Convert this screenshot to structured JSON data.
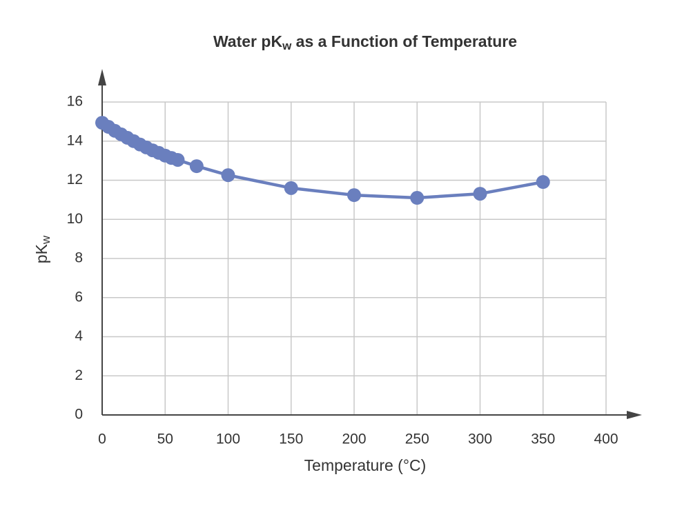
{
  "chart_data": {
    "type": "line",
    "title": [
      "Water pK",
      "w",
      " as a Function of Temperature"
    ],
    "x_label": "Temperature (°C)",
    "y_label": [
      "pK",
      "w"
    ],
    "x": [
      0,
      5,
      10,
      15,
      20,
      25,
      30,
      35,
      40,
      45,
      50,
      55,
      60,
      75,
      100,
      150,
      200,
      250,
      300,
      350
    ],
    "series": [
      {
        "color": "#6a7fbe",
        "values": [
          14.94,
          14.73,
          14.53,
          14.35,
          14.17,
          14.0,
          13.83,
          13.68,
          13.53,
          13.4,
          13.26,
          13.14,
          13.04,
          12.72,
          12.26,
          11.6,
          11.24,
          11.1,
          11.31,
          11.91
        ]
      }
    ],
    "xlim": [
      0,
      400
    ],
    "ylim": [
      0,
      16
    ],
    "xticks": [
      0,
      50,
      100,
      150,
      200,
      250,
      300,
      350,
      400
    ],
    "yticks": [
      0,
      2,
      4,
      6,
      8,
      10,
      12,
      14,
      16
    ],
    "grid": true
  }
}
